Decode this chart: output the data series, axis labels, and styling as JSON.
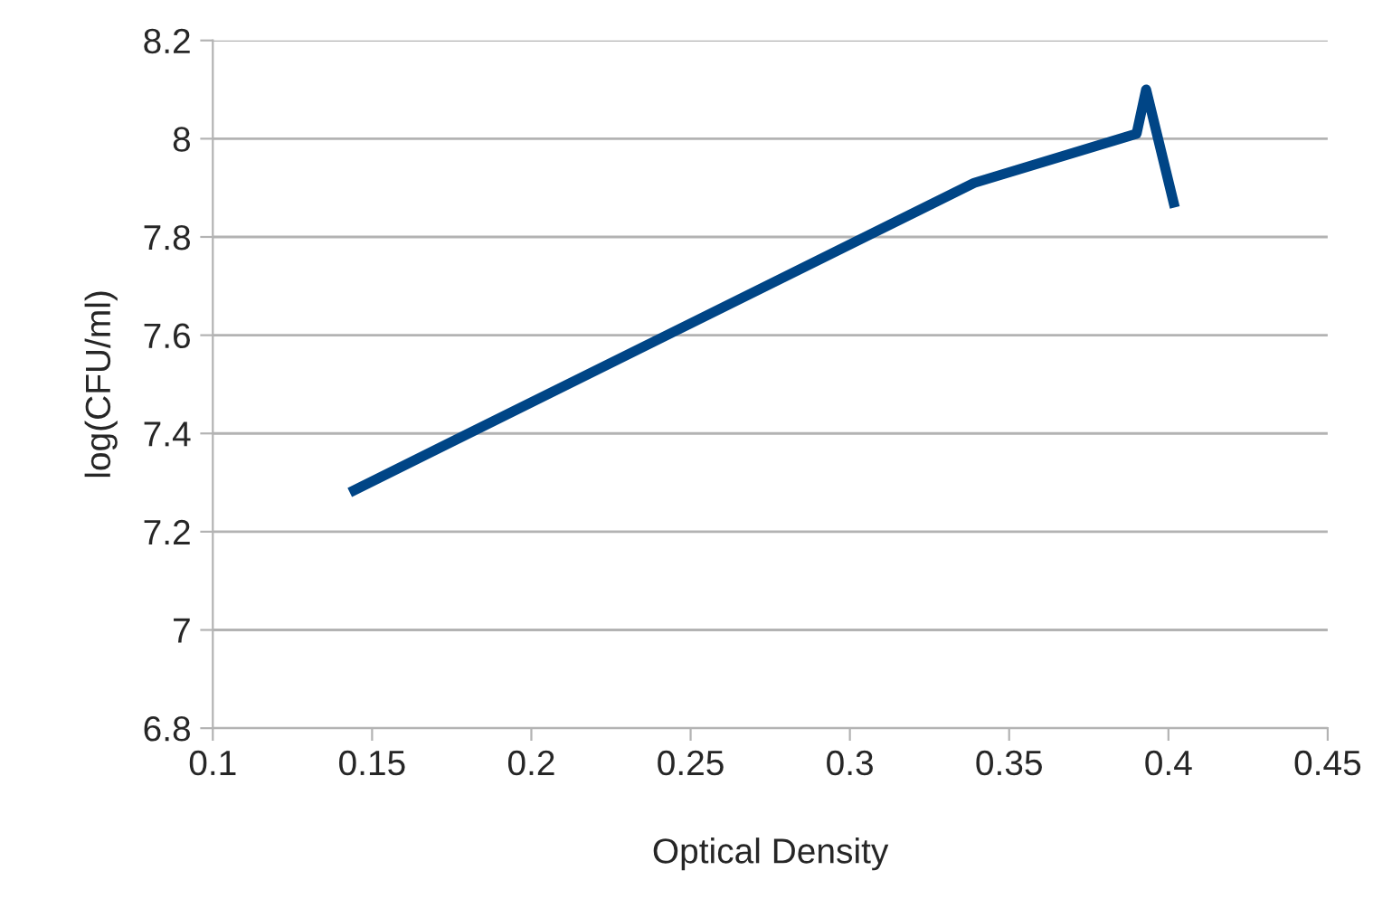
{
  "chart_data": {
    "type": "line",
    "xlabel": "Optical Density",
    "ylabel": "log(CFU/ml)",
    "x": [
      0.143,
      0.339,
      0.39,
      0.393,
      0.402
    ],
    "series": [
      {
        "color": "#004586",
        "values": [
          7.28,
          7.91,
          8.01,
          8.1,
          7.86
        ]
      }
    ],
    "xlim": [
      0.1,
      0.45
    ],
    "xticks": [
      0.1,
      0.15,
      0.2,
      0.25,
      0.3,
      0.35,
      0.4,
      0.45
    ],
    "ylim": [
      6.8,
      8.2
    ],
    "yticks": [
      6.8,
      7,
      7.2,
      7.4,
      7.6,
      7.8,
      8,
      8.2
    ],
    "grid": "y",
    "marker": "none",
    "line_style": "solid"
  }
}
